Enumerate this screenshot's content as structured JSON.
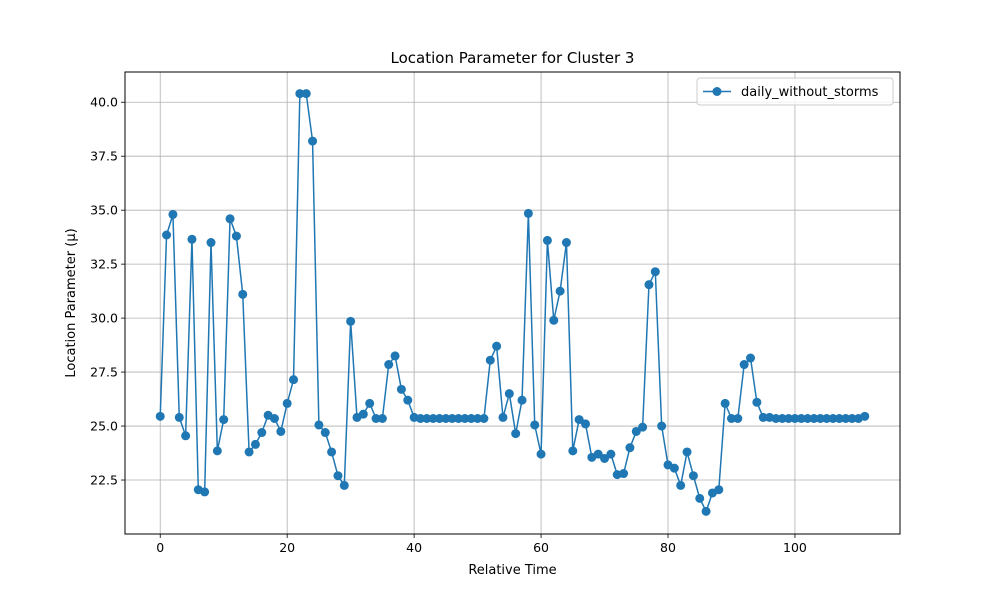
{
  "chart_data": {
    "type": "line",
    "title": "Location Parameter for Cluster 3",
    "xlabel": "Relative Time",
    "ylabel": "Location Parameter (μ)",
    "xlim": [
      -5.55,
      116.55
    ],
    "ylim": [
      20.0,
      41.4
    ],
    "xticks": [
      0,
      20,
      40,
      60,
      80,
      100
    ],
    "xtick_labels": [
      "0",
      "20",
      "40",
      "60",
      "80",
      "100"
    ],
    "yticks": [
      22.5,
      25.0,
      27.5,
      30.0,
      32.5,
      35.0,
      37.5,
      40.0
    ],
    "ytick_labels": [
      "22.5",
      "25.0",
      "27.5",
      "30.0",
      "32.5",
      "35.0",
      "37.5",
      "40.0"
    ],
    "grid": true,
    "legend_position": "top-right",
    "series": [
      {
        "name": "daily_without_storms",
        "color": "#1f77b4",
        "marker": "circle",
        "x": [
          0,
          1,
          2,
          3,
          4,
          5,
          6,
          7,
          8,
          9,
          10,
          11,
          12,
          13,
          14,
          15,
          16,
          17,
          18,
          19,
          20,
          21,
          22,
          23,
          24,
          25,
          26,
          27,
          28,
          29,
          30,
          31,
          32,
          33,
          34,
          35,
          36,
          37,
          38,
          39,
          40,
          41,
          42,
          43,
          44,
          45,
          46,
          47,
          48,
          49,
          50,
          51,
          52,
          53,
          54,
          55,
          56,
          57,
          58,
          59,
          60,
          61,
          62,
          63,
          64,
          65,
          66,
          67,
          68,
          69,
          70,
          71,
          72,
          73,
          74,
          75,
          76,
          77,
          78,
          79,
          80,
          81,
          82,
          83,
          84,
          85,
          86,
          87,
          88,
          89,
          90,
          91,
          92,
          93,
          94,
          95,
          96,
          97,
          98,
          99,
          100,
          101,
          102,
          103,
          104,
          105,
          106,
          107,
          108,
          109,
          110,
          111
        ],
        "values": [
          25.45,
          33.85,
          34.8,
          25.4,
          24.55,
          33.65,
          22.05,
          21.95,
          33.5,
          23.85,
          25.3,
          34.6,
          33.8,
          31.1,
          23.8,
          24.15,
          24.7,
          25.5,
          25.35,
          24.75,
          26.05,
          27.15,
          40.4,
          40.4,
          38.2,
          25.05,
          24.7,
          23.8,
          22.7,
          22.25,
          29.85,
          25.4,
          25.55,
          26.05,
          25.35,
          25.35,
          27.85,
          28.25,
          26.7,
          26.2,
          25.4,
          25.35,
          25.35,
          25.35,
          25.35,
          25.35,
          25.35,
          25.35,
          25.35,
          25.35,
          25.35,
          25.35,
          28.05,
          28.7,
          25.4,
          26.5,
          24.65,
          26.2,
          34.85,
          25.05,
          23.7,
          33.6,
          29.9,
          31.25,
          33.5,
          23.85,
          25.3,
          25.1,
          23.55,
          23.7,
          23.5,
          23.7,
          22.75,
          22.8,
          24.0,
          24.75,
          24.95,
          31.55,
          32.15,
          25.0,
          23.2,
          23.05,
          22.25,
          23.8,
          22.7,
          21.65,
          21.05,
          21.9,
          22.05,
          26.05,
          25.35,
          25.35,
          27.85,
          28.15,
          26.1,
          25.4,
          25.4,
          25.35,
          25.35,
          25.35,
          25.35,
          25.35,
          25.35,
          25.35,
          25.35,
          25.35,
          25.35,
          25.35,
          25.35,
          25.35,
          25.35,
          25.45
        ]
      }
    ]
  }
}
